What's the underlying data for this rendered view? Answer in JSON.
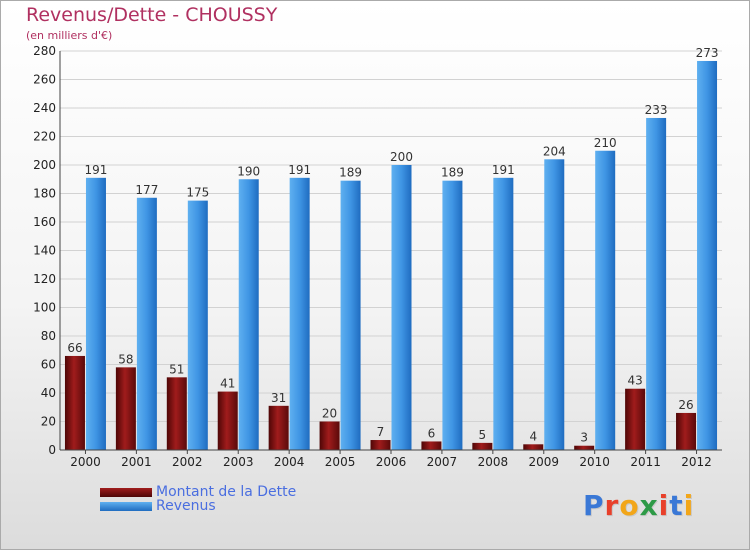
{
  "header": {
    "title": "Revenus/Dette - CHOUSSY",
    "subtitle": "(en milliers d'€)"
  },
  "chart_data": {
    "type": "bar",
    "categories": [
      "2000",
      "2001",
      "2002",
      "2003",
      "2004",
      "2005",
      "2006",
      "2007",
      "2008",
      "2009",
      "2010",
      "2011",
      "2012"
    ],
    "series": [
      {
        "name": "Montant de la Dette",
        "color": "#7a1010",
        "values": [
          66,
          58,
          51,
          41,
          31,
          20,
          7,
          6,
          5,
          4,
          3,
          43,
          26
        ]
      },
      {
        "name": "Revenus",
        "color": "#3a8ee0",
        "values": [
          191,
          177,
          175,
          190,
          191,
          189,
          200,
          189,
          191,
          204,
          210,
          233,
          273
        ]
      }
    ],
    "ylim": [
      0,
      280
    ],
    "yticks": [
      0,
      20,
      40,
      60,
      80,
      100,
      120,
      140,
      160,
      180,
      200,
      220,
      240,
      260,
      280
    ],
    "grid": true,
    "legend_position": "bottom-left"
  },
  "legend": {
    "items": [
      {
        "label": "Montant de la Dette",
        "color": "#7a1010"
      },
      {
        "label": "Revenus",
        "color": "#3a8ee0"
      }
    ]
  },
  "logo": {
    "letters": [
      "P",
      "r",
      "o",
      "x",
      "i",
      "t",
      "i"
    ],
    "colors": [
      "#3a78d6",
      "#e8402a",
      "#f2a619",
      "#2d9a46",
      "#e8402a",
      "#3a78d6",
      "#f2a619"
    ]
  }
}
